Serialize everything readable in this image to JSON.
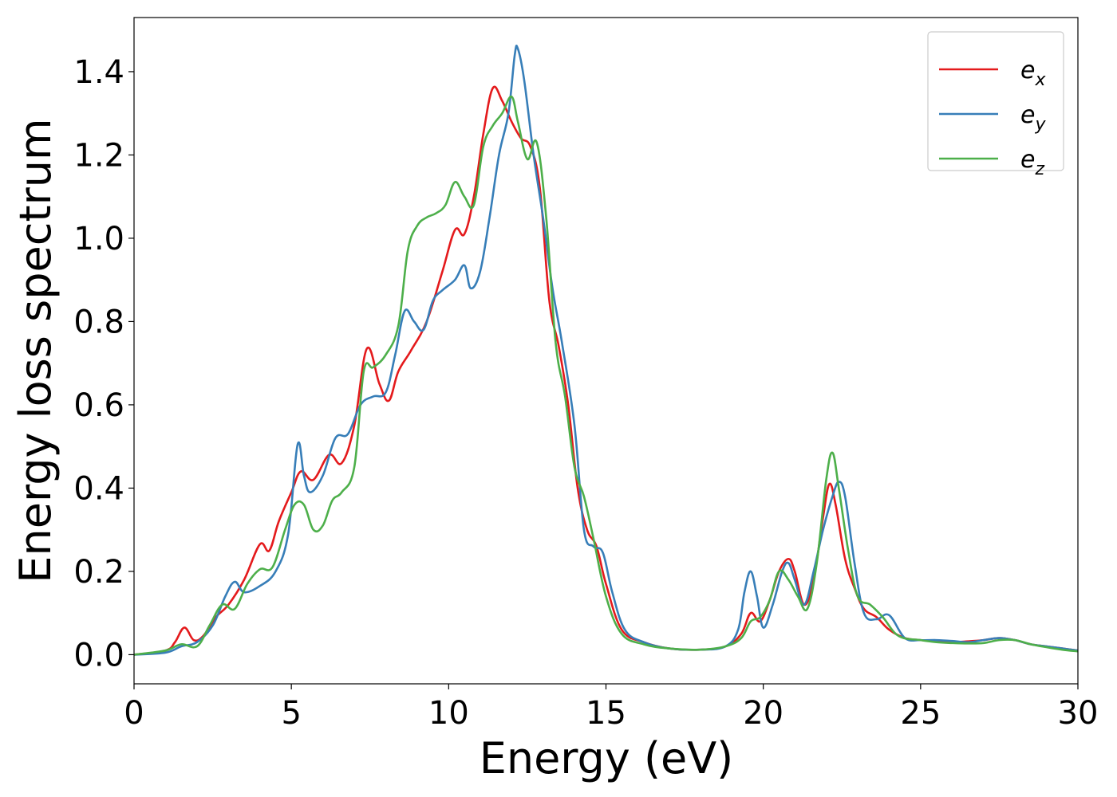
{
  "chart_data": {
    "type": "line",
    "xlabel": "Energy (eV)",
    "ylabel": "Energy loss spectrum",
    "xlim": [
      0,
      30
    ],
    "ylim": [
      -0.07,
      1.53
    ],
    "xticks": [
      0,
      5,
      10,
      15,
      20,
      25,
      30
    ],
    "xtick_labels": [
      "0",
      "5",
      "10",
      "15",
      "20",
      "25",
      "30"
    ],
    "yticks": [
      0.0,
      0.2,
      0.4,
      0.6,
      0.8,
      1.0,
      1.2,
      1.4
    ],
    "ytick_labels": [
      "0.0",
      "0.2",
      "0.4",
      "0.6",
      "0.8",
      "1.0",
      "1.2",
      "1.4"
    ],
    "grid": false,
    "legend_position": "top-right",
    "series": [
      {
        "name": "e_x",
        "label_base": "e",
        "label_sub": "x",
        "color": "#e41a1c",
        "x": [
          0,
          1,
          1.3,
          1.6,
          1.9,
          2.2,
          2.6,
          3,
          3.5,
          4,
          4.3,
          4.6,
          5,
          5.3,
          5.7,
          6.2,
          6.6,
          7,
          7.4,
          7.8,
          8.1,
          8.4,
          8.8,
          9.3,
          9.8,
          10.2,
          10.5,
          10.8,
          11.1,
          11.4,
          11.7,
          12,
          12.3,
          12.6,
          12.9,
          13.2,
          13.5,
          13.8,
          14.1,
          14.4,
          14.7,
          15,
          15.5,
          16.2,
          17,
          18,
          18.8,
          19.3,
          19.6,
          19.9,
          20.2,
          20.5,
          20.8,
          21,
          21.3,
          21.6,
          21.9,
          22.1,
          22.3,
          22.6,
          22.9,
          23.2,
          23.6,
          24,
          24.5,
          25,
          25.5,
          26,
          26.5,
          27,
          27.5,
          28,
          28.5,
          29,
          29.5,
          30
        ],
        "y": [
          0,
          0.01,
          0.03,
          0.065,
          0.035,
          0.045,
          0.09,
          0.12,
          0.18,
          0.265,
          0.25,
          0.32,
          0.39,
          0.44,
          0.42,
          0.48,
          0.46,
          0.55,
          0.735,
          0.65,
          0.61,
          0.68,
          0.73,
          0.8,
          0.92,
          1.02,
          1.01,
          1.1,
          1.25,
          1.36,
          1.33,
          1.28,
          1.24,
          1.22,
          1.12,
          0.85,
          0.74,
          0.6,
          0.4,
          0.3,
          0.26,
          0.17,
          0.06,
          0.03,
          0.015,
          0.012,
          0.02,
          0.05,
          0.1,
          0.08,
          0.13,
          0.2,
          0.23,
          0.2,
          0.12,
          0.18,
          0.33,
          0.41,
          0.36,
          0.23,
          0.16,
          0.11,
          0.09,
          0.06,
          0.04,
          0.035,
          0.032,
          0.03,
          0.032,
          0.035,
          0.04,
          0.035,
          0.025,
          0.02,
          0.015,
          0.01
        ]
      },
      {
        "name": "e_y",
        "label_base": "e",
        "label_sub": "y",
        "color": "#377eb8",
        "x": [
          0,
          1,
          1.5,
          2,
          2.5,
          2.9,
          3.2,
          3.5,
          4,
          4.5,
          4.9,
          5.2,
          5.4,
          5.6,
          6,
          6.4,
          6.8,
          7.2,
          7.6,
          8,
          8.3,
          8.6,
          8.9,
          9.2,
          9.5,
          9.8,
          10.2,
          10.5,
          10.7,
          11,
          11.3,
          11.6,
          11.9,
          12.1,
          12.2,
          12.4,
          12.7,
          13,
          13.3,
          13.6,
          14,
          14.3,
          14.6,
          14.9,
          15.2,
          15.6,
          16.2,
          17,
          18,
          18.8,
          19.2,
          19.4,
          19.6,
          19.8,
          20,
          20.3,
          20.6,
          20.8,
          21,
          21.3,
          21.6,
          21.9,
          22.2,
          22.4,
          22.6,
          22.9,
          23.2,
          23.6,
          24,
          24.5,
          25,
          25.5,
          26,
          26.5,
          27,
          27.5,
          28,
          28.5,
          29,
          29.5,
          30
        ],
        "y": [
          0,
          0.005,
          0.02,
          0.03,
          0.07,
          0.14,
          0.175,
          0.15,
          0.165,
          0.2,
          0.29,
          0.505,
          0.43,
          0.39,
          0.43,
          0.52,
          0.53,
          0.6,
          0.62,
          0.63,
          0.72,
          0.825,
          0.8,
          0.78,
          0.85,
          0.875,
          0.9,
          0.935,
          0.88,
          0.92,
          1.05,
          1.2,
          1.3,
          1.44,
          1.455,
          1.38,
          1.2,
          1.05,
          0.88,
          0.75,
          0.55,
          0.3,
          0.26,
          0.245,
          0.15,
          0.06,
          0.03,
          0.015,
          0.012,
          0.02,
          0.06,
          0.15,
          0.2,
          0.14,
          0.065,
          0.12,
          0.2,
          0.22,
          0.18,
          0.12,
          0.2,
          0.3,
          0.38,
          0.415,
          0.38,
          0.22,
          0.1,
          0.085,
          0.095,
          0.04,
          0.035,
          0.035,
          0.033,
          0.03,
          0.035,
          0.04,
          0.035,
          0.025,
          0.02,
          0.015,
          0.01
        ]
      },
      {
        "name": "e_z",
        "label_base": "e",
        "label_sub": "z",
        "color": "#4daf4a",
        "x": [
          0,
          1,
          1.5,
          2,
          2.4,
          2.8,
          3.2,
          3.6,
          4,
          4.4,
          4.8,
          5.1,
          5.4,
          5.7,
          6,
          6.3,
          6.6,
          7,
          7.3,
          7.6,
          8,
          8.4,
          8.7,
          9,
          9.3,
          9.6,
          9.9,
          10.2,
          10.5,
          10.8,
          11.1,
          11.4,
          11.7,
          12,
          12.2,
          12.5,
          12.8,
          13.1,
          13.4,
          13.7,
          14,
          14.3,
          14.6,
          15,
          15.5,
          16.2,
          17,
          18,
          18.8,
          19.3,
          19.6,
          19.9,
          20.2,
          20.5,
          20.8,
          21.1,
          21.4,
          21.7,
          22,
          22.2,
          22.4,
          22.7,
          23,
          23.4,
          23.8,
          24.3,
          25,
          25.5,
          26,
          26.5,
          27,
          27.5,
          28,
          28.5,
          29,
          29.5,
          30
        ],
        "y": [
          0,
          0.01,
          0.025,
          0.02,
          0.07,
          0.12,
          0.11,
          0.17,
          0.205,
          0.21,
          0.3,
          0.36,
          0.36,
          0.3,
          0.31,
          0.37,
          0.39,
          0.45,
          0.68,
          0.69,
          0.72,
          0.79,
          0.97,
          1.03,
          1.05,
          1.06,
          1.08,
          1.135,
          1.1,
          1.08,
          1.22,
          1.27,
          1.3,
          1.34,
          1.28,
          1.19,
          1.23,
          1.05,
          0.75,
          0.62,
          0.45,
          0.38,
          0.28,
          0.14,
          0.05,
          0.025,
          0.015,
          0.012,
          0.02,
          0.04,
          0.08,
          0.09,
          0.13,
          0.2,
          0.18,
          0.14,
          0.11,
          0.22,
          0.42,
          0.485,
          0.4,
          0.25,
          0.14,
          0.12,
          0.09,
          0.045,
          0.035,
          0.03,
          0.028,
          0.027,
          0.028,
          0.035,
          0.035,
          0.025,
          0.018,
          0.012,
          0.008
        ]
      }
    ]
  }
}
